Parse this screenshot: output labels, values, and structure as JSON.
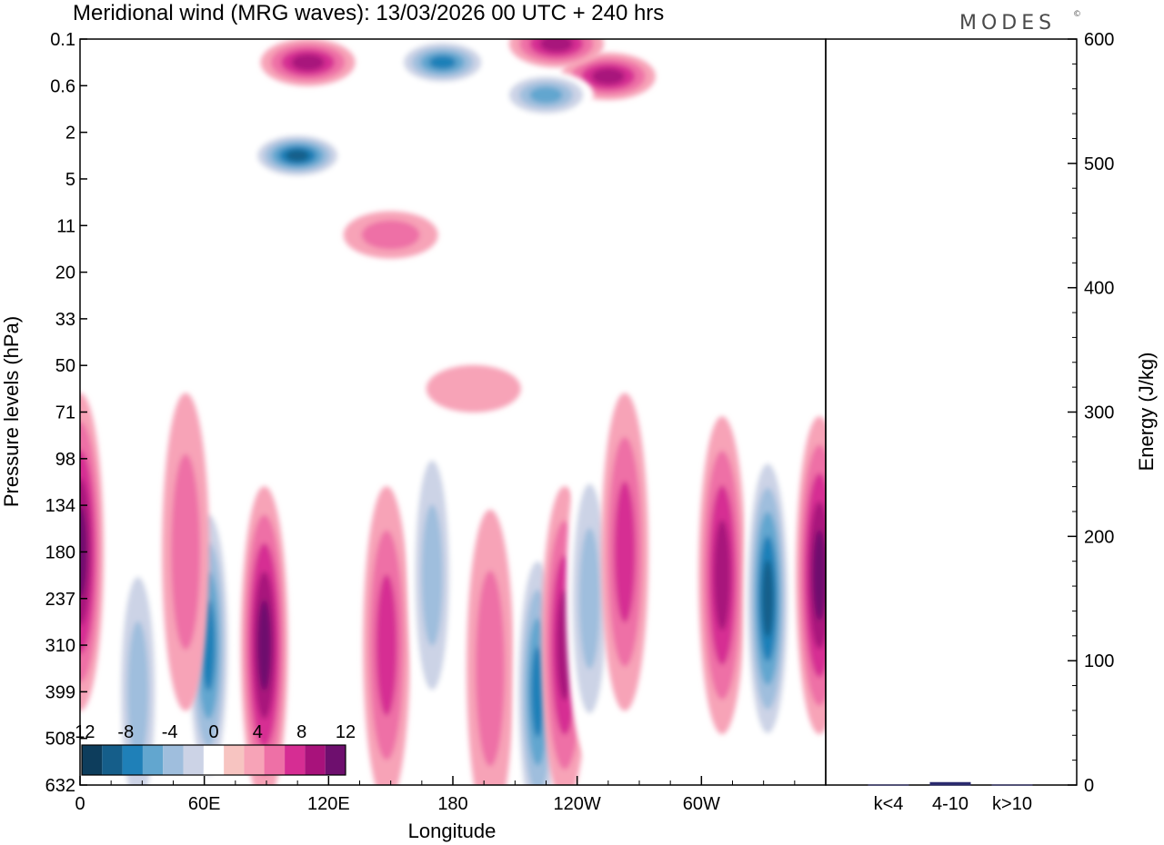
{
  "title": "Meridional wind (MRG waves):  13/03/2026  00 UTC  + 240 hrs",
  "brand": "MODES",
  "brand_mark": "©",
  "chart_data": [
    {
      "type": "heatmap",
      "title": "Meridional wind (MRG waves):  13/03/2026  00 UTC  + 240 hrs",
      "xlabel": "Longitude",
      "ylabel": "Pressure levels (hPa)",
      "x_ticks": [
        "0",
        "60E",
        "120E",
        "180",
        "120W",
        "60W"
      ],
      "x_tick_degrees": [
        0,
        60,
        120,
        180,
        240,
        300
      ],
      "xlim": [
        0,
        360
      ],
      "y_ticks": [
        "0.1",
        "0.6",
        "2",
        "5",
        "11",
        "20",
        "33",
        "50",
        "71",
        "98",
        "134",
        "180",
        "237",
        "310",
        "399",
        "508",
        "632"
      ],
      "colorbar": {
        "labels": [
          "-12",
          "-8",
          "-4",
          "0",
          "4",
          "8",
          "12"
        ],
        "levels": [
          -14,
          -12,
          -10,
          -8,
          -6,
          -4,
          -2,
          2,
          4,
          6,
          8,
          10,
          12,
          14
        ],
        "colors": [
          "#0d3d5c",
          "#155e8a",
          "#1f80b8",
          "#62a6cf",
          "#9fbedd",
          "#ccd3e6",
          "#ffffff",
          "#f7c4c1",
          "#f7a3b7",
          "#ee70a6",
          "#d62d93",
          "#a8127b",
          "#6e0f6e"
        ]
      },
      "features": [
        {
          "name": "cell-1",
          "lon": 62,
          "lev": 13,
          "v": -10
        },
        {
          "name": "cell-2",
          "lon": 89,
          "lev": 13,
          "v": 10
        },
        {
          "name": "cell-3",
          "lon": 148,
          "lev": 13,
          "v": 6
        },
        {
          "name": "cell-4",
          "lon": 170,
          "lev": 11.5,
          "v": -6
        },
        {
          "name": "cell-5",
          "lon": 198,
          "lev": 13.5,
          "v": 4
        },
        {
          "name": "cell-6",
          "lon": 221,
          "lev": 14,
          "v": -10
        },
        {
          "name": "cell-7",
          "lon": 234,
          "lev": 13,
          "v": 8
        },
        {
          "name": "cell-8",
          "lon": 246,
          "lev": 12,
          "v": -6
        },
        {
          "name": "cell-9",
          "lon": 263,
          "lev": 11,
          "v": 6
        },
        {
          "name": "cell-10",
          "lon": 310,
          "lev": 11.5,
          "v": 8
        },
        {
          "name": "cell-11",
          "lon": 332,
          "lev": 12,
          "v": -12
        },
        {
          "name": "cell-12",
          "lon": 357,
          "lev": 11.5,
          "v": 10
        },
        {
          "name": "cell-13",
          "lon": 0,
          "lev": 11,
          "v": 10
        },
        {
          "name": "cell-14",
          "lon": 28,
          "lev": 14,
          "v": -6
        },
        {
          "name": "cell-15",
          "lon": 51,
          "lev": 11,
          "v": 4
        },
        {
          "name": "cell-16",
          "lon": 175,
          "lev": 0.5,
          "v": -10
        },
        {
          "name": "cell-17",
          "lon": 105,
          "lev": 2.5,
          "v": -12
        },
        {
          "name": "cell-18",
          "lon": 110,
          "lev": 0.5,
          "v": 8
        },
        {
          "name": "cell-19",
          "lon": 255,
          "lev": 0.8,
          "v": 8
        },
        {
          "name": "cell-20",
          "lon": 225,
          "lev": 1.2,
          "v": -8
        },
        {
          "name": "cell-21",
          "lon": 230,
          "lev": 0.1,
          "v": 8
        },
        {
          "name": "cell-22",
          "lon": 150,
          "lev": 4.2,
          "v": 4
        },
        {
          "name": "cell-23",
          "lon": 190,
          "lev": 7.5,
          "v": 2
        },
        {
          "name": "cell-24",
          "lon": 38,
          "lev": 5,
          "v": -2
        }
      ]
    },
    {
      "type": "bar",
      "ylabel": "Energy (J/kg)",
      "categories": [
        "k<4",
        "4-10",
        "k>10"
      ],
      "values": [
        0,
        2,
        0
      ],
      "ylim": [
        0,
        600
      ],
      "y_ticks": [
        "0",
        "100",
        "200",
        "300",
        "400",
        "500",
        "600"
      ]
    }
  ]
}
